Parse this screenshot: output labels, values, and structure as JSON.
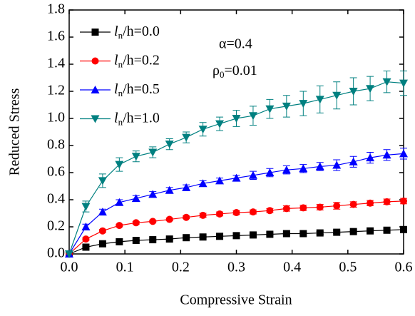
{
  "chart_data": {
    "type": "line",
    "xlabel": "Compressive Strain",
    "ylabel": "Reduced Stress",
    "annotations": [
      "α=0.4",
      "ρ0=0.01"
    ],
    "x": [
      0,
      0.03,
      0.06,
      0.09,
      0.12,
      0.15,
      0.18,
      0.21,
      0.24,
      0.27,
      0.3,
      0.33,
      0.36,
      0.39,
      0.42,
      0.45,
      0.48,
      0.51,
      0.54,
      0.57,
      0.6
    ],
    "series": [
      {
        "name": "ln/h=0.0",
        "color": "#000000",
        "marker": "square",
        "values": [
          0,
          0.05,
          0.075,
          0.09,
          0.1,
          0.105,
          0.11,
          0.12,
          0.125,
          0.13,
          0.135,
          0.14,
          0.145,
          0.15,
          0.15,
          0.155,
          0.16,
          0.165,
          0.17,
          0.175,
          0.18
        ],
        "errors": [
          0,
          0.005,
          0.005,
          0.005,
          0.005,
          0.005,
          0.005,
          0.005,
          0.005,
          0.005,
          0.01,
          0.01,
          0.01,
          0.01,
          0.01,
          0.01,
          0.01,
          0.01,
          0.01,
          0.01,
          0.01
        ]
      },
      {
        "name": "ln/h=0.2",
        "color": "#ff0000",
        "marker": "circle",
        "values": [
          0,
          0.11,
          0.17,
          0.21,
          0.23,
          0.24,
          0.255,
          0.27,
          0.285,
          0.295,
          0.305,
          0.31,
          0.32,
          0.335,
          0.34,
          0.345,
          0.355,
          0.365,
          0.375,
          0.385,
          0.39
        ],
        "errors": [
          0,
          0.01,
          0.01,
          0.01,
          0.01,
          0.01,
          0.01,
          0.01,
          0.015,
          0.015,
          0.015,
          0.015,
          0.015,
          0.02,
          0.02,
          0.02,
          0.025,
          0.02,
          0.02,
          0.02,
          0.02
        ]
      },
      {
        "name": "ln/h=0.5",
        "color": "#0000ff",
        "marker": "triangle-up",
        "values": [
          0,
          0.2,
          0.31,
          0.38,
          0.41,
          0.44,
          0.47,
          0.49,
          0.52,
          0.54,
          0.56,
          0.58,
          0.6,
          0.62,
          0.63,
          0.645,
          0.655,
          0.68,
          0.71,
          0.73,
          0.74
        ],
        "errors": [
          0,
          0.02,
          0.02,
          0.02,
          0.02,
          0.02,
          0.02,
          0.02,
          0.02,
          0.02,
          0.02,
          0.03,
          0.03,
          0.03,
          0.03,
          0.03,
          0.04,
          0.04,
          0.04,
          0.04,
          0.04
        ]
      },
      {
        "name": "ln/h=1.0",
        "color": "#008080",
        "marker": "triangle-down",
        "values": [
          0,
          0.35,
          0.54,
          0.66,
          0.72,
          0.75,
          0.81,
          0.86,
          0.92,
          0.96,
          1.0,
          1.02,
          1.07,
          1.09,
          1.11,
          1.14,
          1.17,
          1.2,
          1.22,
          1.27,
          1.26
        ],
        "errors": [
          0,
          0.04,
          0.05,
          0.05,
          0.04,
          0.04,
          0.04,
          0.04,
          0.05,
          0.05,
          0.06,
          0.07,
          0.07,
          0.08,
          0.09,
          0.1,
          0.1,
          0.1,
          0.09,
          0.08,
          0.09
        ]
      }
    ],
    "xlim": [
      0,
      0.6
    ],
    "ylim": [
      0,
      1.8
    ],
    "xticks": [
      {
        "value": 0,
        "label": "0.0"
      },
      0.1,
      0.2,
      0.3,
      0.4,
      0.5,
      0.6
    ],
    "yticks": [
      {
        "value": 0,
        "label": "0.0"
      },
      0.2,
      0.4,
      0.6,
      0.8,
      {
        "value": 1,
        "label": "1.0"
      },
      1.2,
      1.4,
      1.6,
      1.8
    ],
    "grid": false,
    "legend": "upper left"
  }
}
